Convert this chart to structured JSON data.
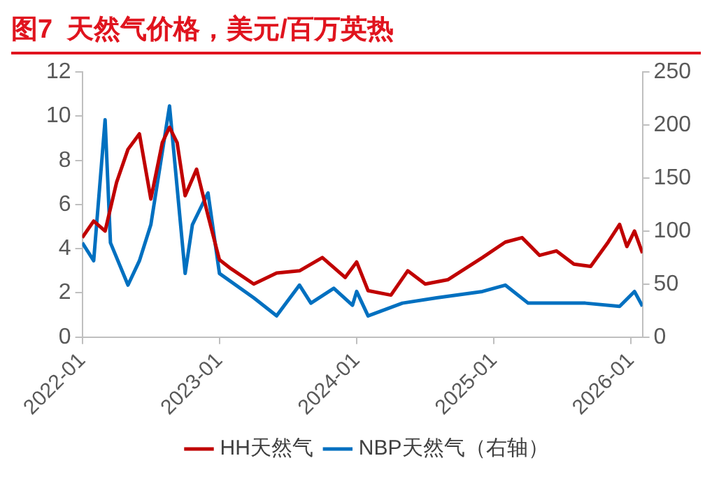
{
  "chart_data": {
    "type": "line",
    "title": "图7  天然气价格，美元/百万英热",
    "series": [
      {
        "name": "HH天然气",
        "color": "#c00000",
        "x": [
          "2022-01-01",
          "2022-02-01",
          "2022-03-01",
          "2022-04-01",
          "2022-05-01",
          "2022-06-01",
          "2022-07-01",
          "2022-08-01",
          "2022-08-20",
          "2022-09-10",
          "2022-10-01",
          "2022-11-01",
          "2022-12-01",
          "2023-01-01",
          "2023-02-01",
          "2023-04-01",
          "2023-06-01",
          "2023-08-01",
          "2023-10-01",
          "2023-12-01",
          "2024-01-01",
          "2024-02-01",
          "2024-04-01",
          "2024-05-15",
          "2024-07-01",
          "2024-09-01",
          "2024-12-01",
          "2025-02-01",
          "2025-03-15",
          "2025-05-01",
          "2025-06-15",
          "2025-08-01",
          "2025-09-15",
          "2025-11-01",
          "2025-12-01",
          "2025-12-20",
          "2026-01-10",
          "2026-02-01"
        ],
        "values": [
          4.5,
          5.25,
          4.8,
          7.0,
          8.5,
          9.2,
          6.25,
          8.8,
          9.5,
          8.8,
          6.4,
          7.6,
          5.5,
          3.5,
          3.1,
          2.4,
          2.9,
          3.0,
          3.6,
          2.7,
          3.4,
          2.1,
          1.9,
          3.0,
          2.4,
          2.6,
          3.6,
          4.3,
          4.5,
          3.7,
          3.9,
          3.3,
          3.2,
          4.3,
          5.1,
          4.1,
          4.8,
          3.8
        ]
      },
      {
        "name": "NBP天然气（右轴）",
        "color": "#0070c0",
        "axis": "y2",
        "x": [
          "2022-01-01",
          "2022-02-01",
          "2022-03-01",
          "2022-03-15",
          "2022-05-01",
          "2022-06-01",
          "2022-07-01",
          "2022-08-20",
          "2022-10-01",
          "2022-10-20",
          "2022-12-01",
          "2023-01-01",
          "2023-04-01",
          "2023-06-01",
          "2023-08-01",
          "2023-09-01",
          "2023-11-01",
          "2023-12-20",
          "2024-01-01",
          "2024-02-01",
          "2024-05-01",
          "2024-08-01",
          "2024-12-01",
          "2025-02-01",
          "2025-04-01",
          "2025-09-01",
          "2025-12-01",
          "2026-01-10",
          "2026-02-01"
        ],
        "values": [
          89,
          72,
          205,
          89,
          49,
          72,
          106,
          218,
          60,
          106,
          136,
          60,
          37,
          20,
          49,
          32,
          46,
          30,
          43,
          20,
          32,
          37,
          43,
          49,
          32,
          32,
          29,
          43,
          29
        ]
      }
    ],
    "xlim": [
      "2022-01",
      "2026-02"
    ],
    "xticks": [
      "2022-01",
      "2023-01",
      "2024-01",
      "2025-01",
      "2026-01"
    ],
    "ylim": [
      0,
      12
    ],
    "yticks": [
      0,
      2,
      4,
      6,
      8,
      10,
      12
    ],
    "y2lim": [
      0,
      250
    ],
    "y2ticks": [
      0,
      50,
      100,
      150,
      200,
      250
    ],
    "grid": false,
    "legend": "bottom",
    "marker": "none",
    "line_style": "solid"
  }
}
